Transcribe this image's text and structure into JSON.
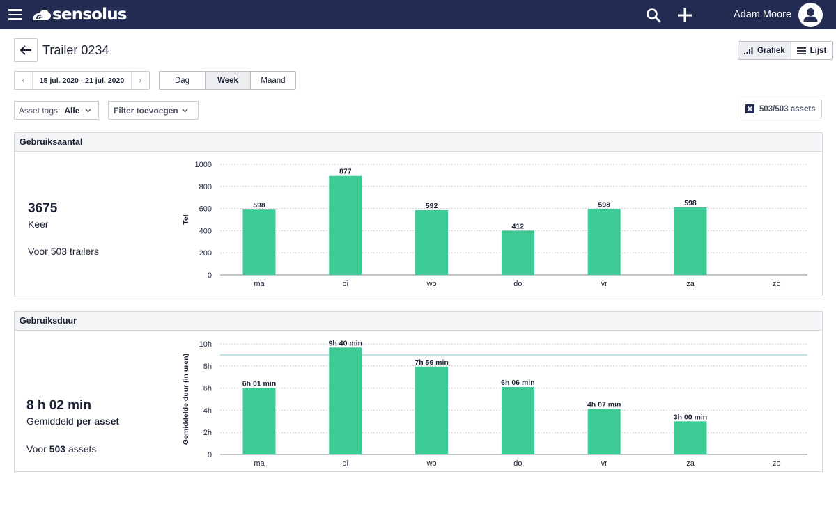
{
  "app": {
    "brand": "sensolus",
    "user_name": "Adam Moore",
    "icons": {
      "menu": "hamburger-icon",
      "search": "search-icon",
      "add": "plus-icon",
      "user": "user-avatar-icon",
      "back": "arrow-left-icon"
    }
  },
  "header": {
    "title": "Trailer 0234",
    "views": [
      {
        "label": "Grafiek",
        "icon": "bar-chart-icon",
        "active": true
      },
      {
        "label": "Lijst",
        "icon": "list-icon",
        "active": false
      }
    ]
  },
  "date_range": {
    "text": "15 jul. 2020 - 21 jul. 2020"
  },
  "periods": [
    {
      "label": "Dag",
      "active": false
    },
    {
      "label": "Week",
      "active": true
    },
    {
      "label": "Maand",
      "active": false
    }
  ],
  "filters": {
    "asset_tags_label": "Asset tags:",
    "asset_tags_value": "Alle",
    "add_filter_label": "Filter toevoegen",
    "assets_count": "503/503 assets"
  },
  "usage_count": {
    "title": "Gebruiksaantal",
    "total": "3675",
    "unit": "Keer",
    "footnote": "Voor 503 trailers"
  },
  "usage_duration": {
    "title": "Gebruiksduur",
    "total": "8 h 02 min",
    "subtitle_prefix": "Gemiddeld ",
    "subtitle_bold": "per asset",
    "footnote_prefix": "Voor ",
    "footnote_bold": "503",
    "footnote_suffix": " assets"
  },
  "colors": {
    "bar": "#3ccb95",
    "navbar": "#232b52",
    "average_line": "#a9d9e4"
  },
  "chart_data": [
    {
      "type": "bar",
      "title": "",
      "xlabel": "",
      "ylabel": "Tel",
      "categories": [
        "ma",
        "di",
        "wo",
        "do",
        "vr",
        "za",
        "zo"
      ],
      "values": [
        598,
        877,
        592,
        412,
        598,
        598,
        null
      ],
      "bar_heights": [
        590,
        895,
        585,
        400,
        595,
        610,
        null
      ],
      "data_labels": [
        "598",
        "877",
        "592",
        "412",
        "598",
        "598",
        ""
      ],
      "ylim": [
        0,
        1000
      ],
      "yticks": [
        0,
        200,
        400,
        600,
        800,
        1000
      ],
      "ytick_labels": [
        "0",
        "200",
        "400",
        "600",
        "800",
        "1000"
      ],
      "grid": true
    },
    {
      "type": "bar",
      "title": "",
      "xlabel": "",
      "ylabel": "Gemiddelde duur (in uren)",
      "categories": [
        "ma",
        "di",
        "wo",
        "do",
        "vr",
        "za",
        "zo"
      ],
      "values": [
        6.017,
        9.667,
        7.933,
        6.1,
        4.117,
        3.0,
        null
      ],
      "data_labels": [
        "6h 01 min",
        "9h 40 min",
        "7h 56 min",
        "6h 06 min",
        "4h 07 min",
        "3h 00 min",
        ""
      ],
      "ylim": [
        0,
        10
      ],
      "yticks": [
        0,
        2,
        4,
        6,
        8,
        10
      ],
      "ytick_labels": [
        "0",
        "2h",
        "4h",
        "6h",
        "8h",
        "10h"
      ],
      "average_line": 9.0,
      "grid": true
    }
  ]
}
